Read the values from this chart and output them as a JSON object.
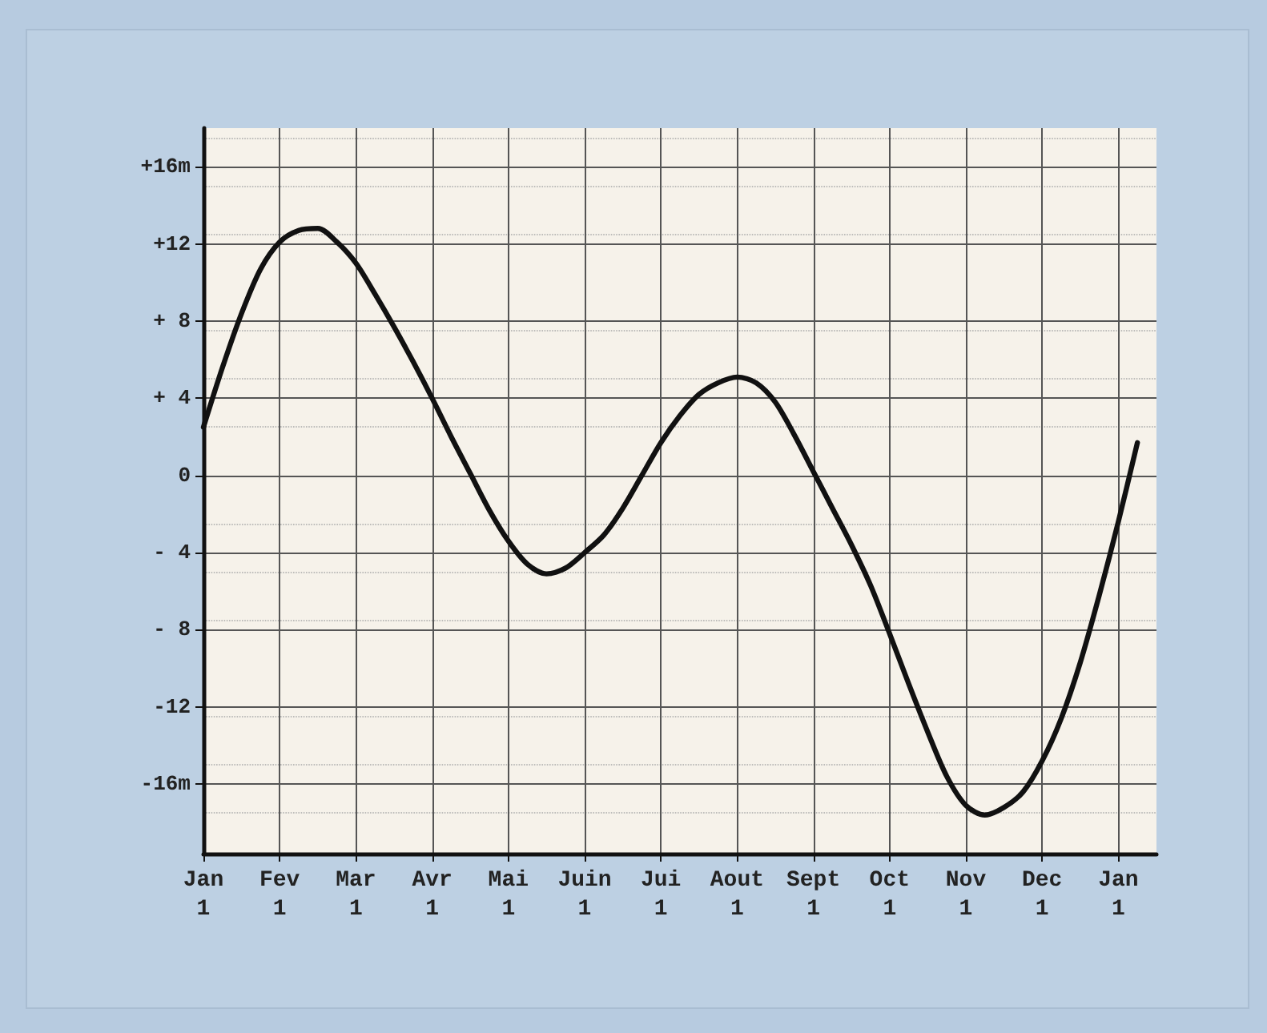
{
  "chart_data": {
    "type": "line",
    "categories": [
      "Jan\n1",
      null,
      null,
      null,
      "Fev\n1",
      null,
      null,
      null,
      "Mar\n1",
      null,
      null,
      null,
      "Avr\n1",
      null,
      null,
      null,
      "Mai\n1",
      null,
      null,
      null,
      "Juin\n1",
      null,
      null,
      null,
      "Jui\n1",
      null,
      null,
      null,
      "Aout\n1",
      null,
      null,
      null,
      "Sept\n1",
      null,
      null,
      null,
      "Oct\n1",
      null,
      null,
      null,
      "Nov\n1",
      null,
      null,
      null,
      "Dec\n1",
      null,
      null,
      null,
      "Jan\n1",
      null,
      null
    ],
    "series": [
      {
        "color": "#111111",
        "values": [
          2.5,
          5.6,
          8.4,
          10.7,
          12.1,
          12.7,
          12.8,
          12.1,
          11.0,
          9.4,
          7.7,
          5.9,
          4.0,
          2.0,
          0.1,
          -1.8,
          -3.4,
          -4.6,
          -5.1,
          -4.8,
          -4.0,
          -3.1,
          -1.7,
          0,
          1.7,
          3.1,
          4.2,
          4.8,
          5.1,
          4.8,
          3.8,
          2.1,
          0.2,
          -1.7,
          -3.6,
          -5.7,
          -8.2,
          -10.8,
          -13.3,
          -15.6,
          -17.1,
          -17.6,
          -17.2,
          -16.4,
          -14.8,
          -12.6,
          -9.7,
          -6.2,
          -2.4,
          1.7,
          null
        ]
      }
    ],
    "ylim": [
      -19.6,
      18
    ],
    "yticks": [
      {
        "value": 16,
        "label": "+16m"
      },
      {
        "value": 12,
        "label": "+12"
      },
      {
        "value": 8,
        "label": "+ 8"
      },
      {
        "value": 4,
        "label": "+ 4"
      },
      0,
      {
        "value": -4,
        "label": "- 4"
      },
      {
        "value": -8,
        "label": "- 8"
      },
      -12,
      {
        "value": -16,
        "label": "-16m"
      }
    ],
    "grid": true,
    "marker": "none",
    "line_style": "solid"
  }
}
